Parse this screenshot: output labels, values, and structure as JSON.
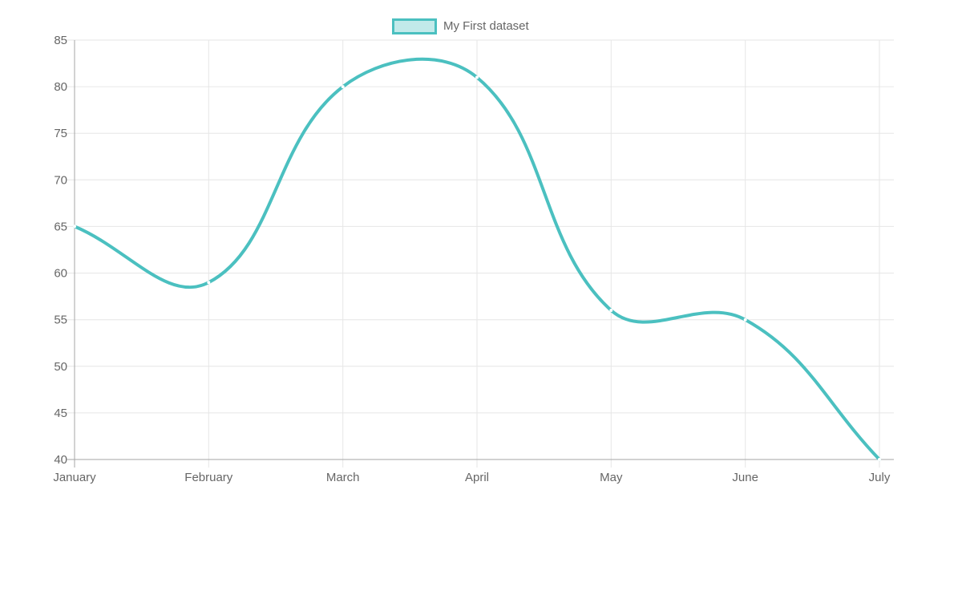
{
  "page": {
    "background_color": "#ffffff"
  },
  "legend": {
    "label": "My First dataset"
  },
  "chart_data": {
    "type": "line",
    "title": "",
    "xlabel": "",
    "ylabel": "",
    "categories": [
      "January",
      "February",
      "March",
      "April",
      "May",
      "June",
      "July"
    ],
    "series": [
      {
        "name": "My First dataset",
        "values": [
          65,
          59,
          80,
          81,
          56,
          55,
          40
        ],
        "line_color": "#4bc0c0",
        "fill_color": "#c2eaea",
        "point_color": "#ffffff"
      }
    ],
    "ylim": [
      40,
      85
    ],
    "y_tick_step": 5,
    "y_ticks": [
      85,
      80,
      75,
      70,
      65,
      60,
      55,
      50,
      45,
      40
    ],
    "grid": true,
    "legend_position": "top",
    "line_tension": 0.4,
    "line_width": 4,
    "grid_color": "#e6e6e6",
    "axis_color": "#a6a6a6",
    "tick_label_color": "#666666"
  }
}
